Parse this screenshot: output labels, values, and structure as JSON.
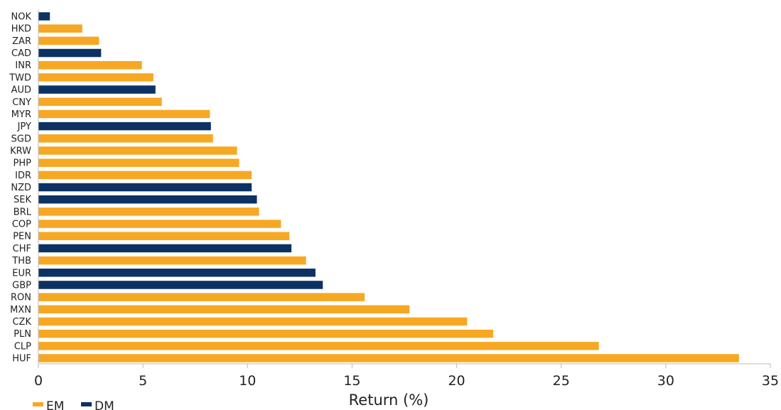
{
  "chart_data": {
    "type": "bar",
    "orientation": "horizontal",
    "xlabel": "Return (%)",
    "xlim": [
      0,
      35
    ],
    "xticks": [
      0,
      5,
      10,
      15,
      20,
      25,
      30,
      35
    ],
    "grid": false,
    "legend_position": "bottom-left",
    "series_colors": {
      "EM": "#f7a823",
      "DM": "#0b3263"
    },
    "legend": [
      {
        "name": "EM",
        "color": "#f7a823"
      },
      {
        "name": "DM",
        "color": "#0b3263"
      }
    ],
    "bars": [
      {
        "category": "NOK",
        "value": 0.55,
        "group": "DM"
      },
      {
        "category": "HKD",
        "value": 2.1,
        "group": "EM"
      },
      {
        "category": "ZAR",
        "value": 2.9,
        "group": "EM"
      },
      {
        "category": "CAD",
        "value": 3.0,
        "group": "DM"
      },
      {
        "category": "INR",
        "value": 4.95,
        "group": "EM"
      },
      {
        "category": "TWD",
        "value": 5.5,
        "group": "EM"
      },
      {
        "category": "AUD",
        "value": 5.6,
        "group": "DM"
      },
      {
        "category": "CNY",
        "value": 5.9,
        "group": "EM"
      },
      {
        "category": "MYR",
        "value": 8.2,
        "group": "EM"
      },
      {
        "category": "JPY",
        "value": 8.25,
        "group": "DM"
      },
      {
        "category": "SGD",
        "value": 8.35,
        "group": "EM"
      },
      {
        "category": "KRW",
        "value": 9.5,
        "group": "EM"
      },
      {
        "category": "PHP",
        "value": 9.6,
        "group": "EM"
      },
      {
        "category": "IDR",
        "value": 10.2,
        "group": "EM"
      },
      {
        "category": "NZD",
        "value": 10.2,
        "group": "DM"
      },
      {
        "category": "SEK",
        "value": 10.45,
        "group": "DM"
      },
      {
        "category": "BRL",
        "value": 10.55,
        "group": "EM"
      },
      {
        "category": "COP",
        "value": 11.6,
        "group": "EM"
      },
      {
        "category": "PEN",
        "value": 12.0,
        "group": "EM"
      },
      {
        "category": "CHF",
        "value": 12.1,
        "group": "DM"
      },
      {
        "category": "THB",
        "value": 12.8,
        "group": "EM"
      },
      {
        "category": "EUR",
        "value": 13.25,
        "group": "DM"
      },
      {
        "category": "GBP",
        "value": 13.6,
        "group": "DM"
      },
      {
        "category": "RON",
        "value": 15.6,
        "group": "EM"
      },
      {
        "category": "MXN",
        "value": 17.75,
        "group": "EM"
      },
      {
        "category": "CZK",
        "value": 20.5,
        "group": "EM"
      },
      {
        "category": "PLN",
        "value": 21.75,
        "group": "EM"
      },
      {
        "category": "CLP",
        "value": 26.8,
        "group": "EM"
      },
      {
        "category": "HUF",
        "value": 33.5,
        "group": "EM"
      }
    ]
  }
}
